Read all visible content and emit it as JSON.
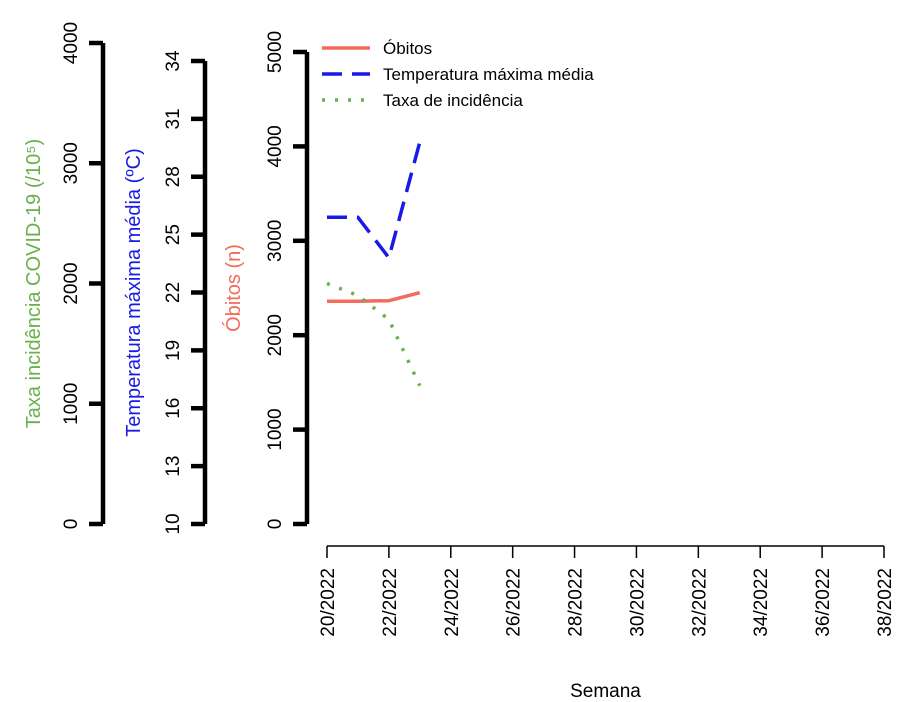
{
  "chart_data": {
    "type": "line",
    "xlabel": "Semana",
    "x_ticks": [
      "20/2022",
      "22/2022",
      "24/2022",
      "26/2022",
      "28/2022",
      "30/2022",
      "32/2022",
      "34/2022",
      "36/2022",
      "38/2022"
    ],
    "x_range": [
      20,
      38
    ],
    "axes": {
      "incidence": {
        "label": "Taxa incidência COVID-19 (/10⁵)",
        "color": "#6AB04C",
        "range": [
          0,
          4000
        ],
        "ticks": [
          "0",
          "1000",
          "2000",
          "3000",
          "4000"
        ]
      },
      "temperature": {
        "label": "Temperatura máxima média (ºC)",
        "color": "#1A1AE6",
        "range": [
          10,
          34
        ],
        "ticks": [
          "10",
          "13",
          "16",
          "19",
          "22",
          "25",
          "28",
          "31",
          "34"
        ]
      },
      "deaths": {
        "label": "Óbitos (n)",
        "color": "#F26B5B",
        "range": [
          0,
          5000
        ],
        "ticks": [
          "0",
          "1000",
          "2000",
          "3000",
          "4000",
          "5000"
        ]
      }
    },
    "series": [
      {
        "name": "Óbitos",
        "axis": "deaths",
        "color": "#F26B5B",
        "dash": "solid",
        "x": [
          20,
          21,
          22,
          23
        ],
        "y": [
          2360,
          2360,
          2365,
          2450
        ]
      },
      {
        "name": "Temperatura máxima média",
        "axis": "temperature",
        "color": "#1A1AE6",
        "dash": "dashed",
        "x": [
          20,
          21,
          22,
          23
        ],
        "y": [
          25.9,
          25.9,
          23.8,
          29.8
        ]
      },
      {
        "name": "Taxa de incidência",
        "axis": "incidence",
        "color": "#6AB04C",
        "dash": "dotted",
        "x": [
          20,
          21,
          22,
          23
        ],
        "y": [
          2000,
          1900,
          1700,
          1150
        ]
      }
    ],
    "legend": [
      "Óbitos",
      "Temperatura máxima média",
      "Taxa de incidência"
    ],
    "legend_position": "top-left"
  }
}
